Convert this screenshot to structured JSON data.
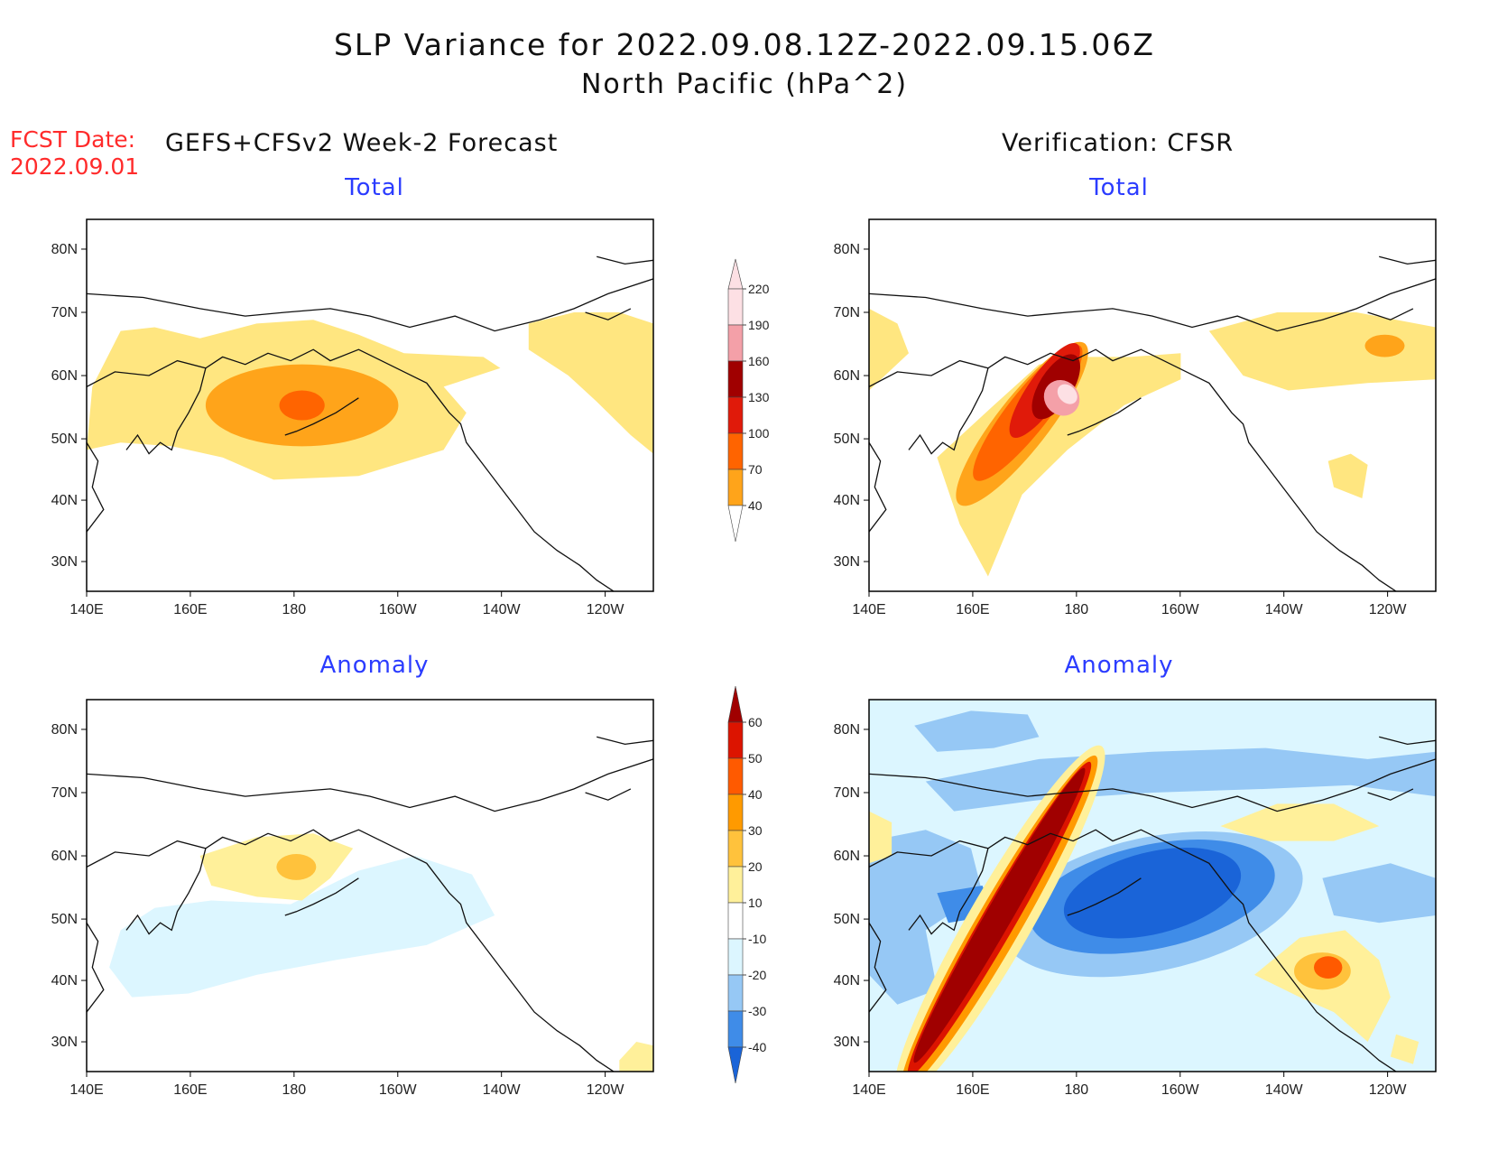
{
  "header": {
    "title_line1": "SLP Variance for 2022.09.08.12Z-2022.09.15.06Z",
    "title_line2": "North Pacific (hPa^2)",
    "fcst_label": "FCST Date:",
    "fcst_date": "2022.09.01",
    "left_heading": "GEFS+CFSv2 Week-2 Forecast",
    "right_heading": "Verification: CFSR"
  },
  "panels": [
    {
      "id": "forecast-total",
      "title": "Total"
    },
    {
      "id": "verification-total",
      "title": "Total"
    },
    {
      "id": "forecast-anomaly",
      "title": "Anomaly"
    },
    {
      "id": "verification-anomaly",
      "title": "Anomaly"
    }
  ],
  "axes": {
    "lat_ticks": [
      "30N",
      "40N",
      "50N",
      "60N",
      "70N",
      "80N"
    ],
    "lon_ticks": [
      "140E",
      "160E",
      "180",
      "160W",
      "140W",
      "120W"
    ]
  },
  "colorbars": {
    "total": {
      "levels": [
        "40",
        "70",
        "100",
        "130",
        "160",
        "190",
        "220"
      ],
      "colors": [
        "#ffe680",
        "#ffa41a",
        "#ff6400",
        "#e01a0a",
        "#a00000",
        "#f4a0a8",
        "#fde0e4"
      ]
    },
    "anomaly": {
      "levels": [
        "-40",
        "-30",
        "-20",
        "-10",
        "10",
        "20",
        "30",
        "40",
        "50",
        "60"
      ],
      "colors": [
        "#1a64d8",
        "#3f8ce8",
        "#96c8f5",
        "#dcf6ff",
        "#ffffff",
        "#fff09a",
        "#ffc23c",
        "#ff9a00",
        "#ff5a00",
        "#dc1400",
        "#a00000"
      ]
    }
  },
  "map_colors": {
    "coast": "#111111",
    "frame": "#000000"
  }
}
